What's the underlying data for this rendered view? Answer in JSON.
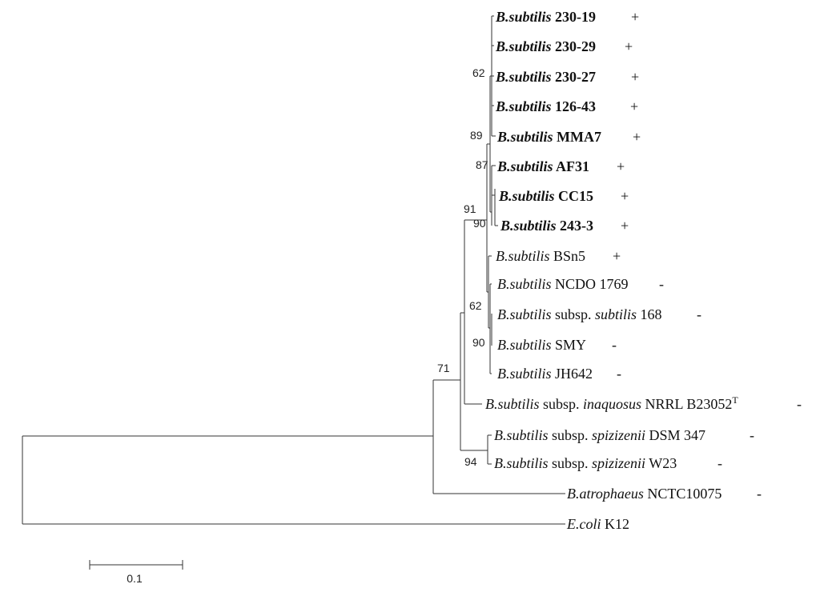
{
  "leaves": [
    {
      "id": "l1",
      "sign": "+",
      "parts": [
        {
          "t": "B.subtilis",
          "i": true,
          "b": true
        },
        {
          "t": " 230-19",
          "b": true
        }
      ]
    },
    {
      "id": "l2",
      "sign": "+",
      "parts": [
        {
          "t": "B.subtilis",
          "i": true,
          "b": true
        },
        {
          "t": " 230-29",
          "b": true
        }
      ]
    },
    {
      "id": "l3",
      "sign": "+",
      "parts": [
        {
          "t": "B.subtilis",
          "i": true,
          "b": true
        },
        {
          "t": " 230-27",
          "b": true
        }
      ]
    },
    {
      "id": "l4",
      "sign": "+",
      "parts": [
        {
          "t": "B.subtilis",
          "i": true,
          "b": true
        },
        {
          "t": " 126-43",
          "b": true
        }
      ]
    },
    {
      "id": "l5",
      "sign": "+",
      "parts": [
        {
          "t": "B.subtilis",
          "i": true,
          "b": true
        },
        {
          "t": " MMA7",
          "b": true
        }
      ]
    },
    {
      "id": "l6",
      "sign": "+",
      "parts": [
        {
          "t": "B.subtilis",
          "i": true,
          "b": true
        },
        {
          "t": " AF31",
          "b": true
        }
      ]
    },
    {
      "id": "l7",
      "sign": "+",
      "parts": [
        {
          "t": "B.subtilis",
          "i": true,
          "b": true
        },
        {
          "t": " CC15",
          "b": true
        }
      ]
    },
    {
      "id": "l8",
      "sign": "+",
      "parts": [
        {
          "t": "B.subtilis",
          "i": true,
          "b": true
        },
        {
          "t": " 243-3",
          "b": true
        }
      ]
    },
    {
      "id": "l9",
      "sign": "+",
      "parts": [
        {
          "t": "B.subtilis",
          "i": true
        },
        {
          "t": " BSn5"
        }
      ]
    },
    {
      "id": "l10",
      "sign": "-",
      "parts": [
        {
          "t": "B.subtilis",
          "i": true
        },
        {
          "t": " NCDO 1769"
        }
      ]
    },
    {
      "id": "l11",
      "sign": "-",
      "parts": [
        {
          "t": "B.subtilis",
          "i": true
        },
        {
          "t": " subsp. "
        },
        {
          "t": "subtilis",
          "i": true
        },
        {
          "t": " 168"
        }
      ]
    },
    {
      "id": "l12",
      "sign": "-",
      "parts": [
        {
          "t": "B.subtilis",
          "i": true
        },
        {
          "t": " SMY"
        }
      ]
    },
    {
      "id": "l13",
      "sign": "-",
      "parts": [
        {
          "t": "B.subtilis",
          "i": true
        },
        {
          "t": " JH642"
        }
      ]
    },
    {
      "id": "l14",
      "sign": "-",
      "parts": [
        {
          "t": "B.subtilis",
          "i": true
        },
        {
          "t": " subsp. "
        },
        {
          "t": "inaquosus",
          "i": true
        },
        {
          "t": " NRRL B23052"
        },
        {
          "t": "T",
          "sup": true
        }
      ]
    },
    {
      "id": "l15",
      "sign": "-",
      "parts": [
        {
          "t": "B.subtilis",
          "i": true
        },
        {
          "t": " subsp. "
        },
        {
          "t": "spizizenii",
          "i": true
        },
        {
          "t": " DSM 347"
        }
      ]
    },
    {
      "id": "l16",
      "sign": "-",
      "parts": [
        {
          "t": "B.subtilis",
          "i": true
        },
        {
          "t": " subsp. "
        },
        {
          "t": "spizizenii",
          "i": true
        },
        {
          "t": " W23"
        }
      ]
    },
    {
      "id": "l17",
      "sign": "-",
      "parts": [
        {
          "t": "B.atrophaeus",
          "i": true
        },
        {
          "t": " NCTC10075"
        }
      ]
    },
    {
      "id": "l18",
      "sign": "",
      "parts": [
        {
          "t": "E.coli",
          "i": true
        },
        {
          "t": " K12"
        }
      ]
    }
  ],
  "bootstrap": [
    {
      "id": "bs62a",
      "value": "62"
    },
    {
      "id": "bs89",
      "value": "89"
    },
    {
      "id": "bs87",
      "value": "87"
    },
    {
      "id": "bs91",
      "value": "91"
    },
    {
      "id": "bs90a",
      "value": "90"
    },
    {
      "id": "bs62b",
      "value": "62"
    },
    {
      "id": "bs90b",
      "value": "90"
    },
    {
      "id": "bs71",
      "value": "71"
    },
    {
      "id": "bs94",
      "value": "94"
    }
  ],
  "scale_bar": {
    "label": "0.1"
  }
}
